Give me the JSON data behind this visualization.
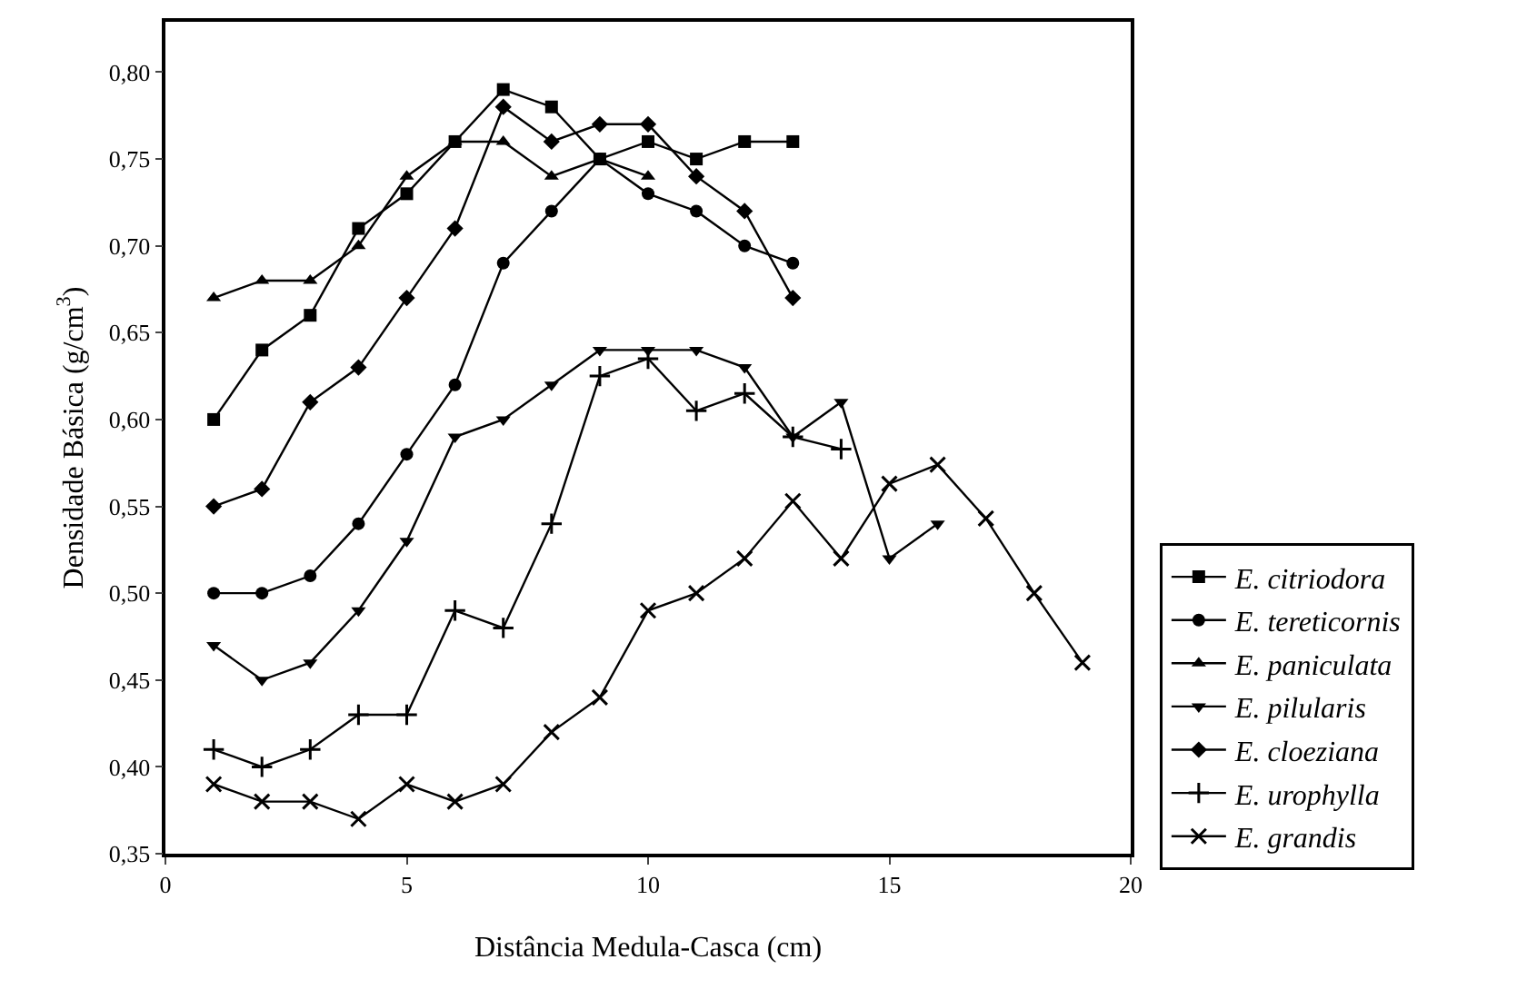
{
  "chart_data": {
    "type": "line",
    "xlabel": "Distância Medula-Casca (cm)",
    "ylabel": "Densidade Básica (g/cm$^{3}$)",
    "xlim": [
      0,
      20
    ],
    "xticks": [
      0,
      5,
      10,
      15,
      20
    ],
    "ylim": [
      0.35,
      0.829
    ],
    "yticks": [
      {
        "value": 0.35,
        "label": "0,35"
      },
      {
        "value": 0.4,
        "label": "0,40"
      },
      {
        "value": 0.45,
        "label": "0,45"
      },
      {
        "value": 0.5,
        "label": "0,50"
      },
      {
        "value": 0.55,
        "label": "0,55"
      },
      {
        "value": 0.6,
        "label": "0,60"
      },
      {
        "value": 0.65,
        "label": "0,65"
      },
      {
        "value": 0.7,
        "label": "0,70"
      },
      {
        "value": 0.75,
        "label": "0,75"
      },
      {
        "value": 0.8,
        "label": "0,80"
      }
    ],
    "grid": false,
    "legend": "right",
    "line_style": "solid",
    "series": [
      {
        "name": "E. citriodora",
        "color": "#000000",
        "marker": "square",
        "x": [
          1,
          2,
          3,
          4,
          5,
          6,
          7,
          8,
          9,
          10,
          11,
          12,
          13
        ],
        "values": [
          0.6,
          0.64,
          0.66,
          0.71,
          0.73,
          0.76,
          0.79,
          0.78,
          0.75,
          0.76,
          0.75,
          0.76,
          0.76
        ]
      },
      {
        "name": "E. tereticornis",
        "color": "#000000",
        "marker": "circle",
        "x": [
          1,
          2,
          3,
          4,
          5,
          6,
          7,
          8,
          9,
          10,
          11,
          12,
          13
        ],
        "values": [
          0.5,
          0.5,
          0.51,
          0.54,
          0.58,
          0.62,
          0.69,
          0.72,
          0.75,
          0.73,
          0.72,
          0.7,
          0.69
        ]
      },
      {
        "name": "E. paniculata",
        "color": "#000000",
        "marker": "triangle",
        "x": [
          1,
          2,
          3,
          4,
          5,
          6,
          7,
          8,
          9,
          10
        ],
        "values": [
          0.67,
          0.68,
          0.68,
          0.7,
          0.74,
          0.76,
          0.76,
          0.74,
          0.75,
          0.74
        ]
      },
      {
        "name": "E. pilularis",
        "color": "#000000",
        "marker": "triangle-down",
        "x": [
          1,
          2,
          3,
          4,
          5,
          6,
          7,
          8,
          9,
          10,
          11,
          12,
          13,
          14,
          15,
          16
        ],
        "values": [
          0.47,
          0.45,
          0.46,
          0.49,
          0.53,
          0.59,
          0.6,
          0.62,
          0.64,
          0.64,
          0.64,
          0.63,
          0.59,
          0.61,
          0.52,
          0.54
        ]
      },
      {
        "name": "E. cloeziana",
        "color": "#000000",
        "marker": "diamond",
        "x": [
          1,
          2,
          3,
          4,
          5,
          6,
          7,
          8,
          9,
          10,
          11,
          12,
          13
        ],
        "values": [
          0.55,
          0.56,
          0.61,
          0.63,
          0.67,
          0.71,
          0.78,
          0.76,
          0.77,
          0.77,
          0.74,
          0.72,
          0.67
        ]
      },
      {
        "name": "E. urophylla",
        "color": "#000000",
        "marker": "cross",
        "x": [
          1,
          2,
          3,
          4,
          5,
          6,
          7,
          8,
          9,
          10,
          11,
          12,
          13,
          14
        ],
        "values": [
          0.41,
          0.4,
          0.41,
          0.43,
          0.43,
          0.49,
          0.48,
          0.54,
          0.625,
          0.635,
          0.605,
          0.615,
          0.59,
          0.583
        ]
      },
      {
        "name": "E. grandis",
        "color": "#000000",
        "marker": "x",
        "x": [
          1,
          2,
          3,
          4,
          5,
          6,
          7,
          8,
          9,
          10,
          11,
          12,
          13,
          14,
          15,
          16,
          17,
          18,
          19
        ],
        "values": [
          0.39,
          0.38,
          0.38,
          0.37,
          0.39,
          0.38,
          0.39,
          0.42,
          0.44,
          0.49,
          0.5,
          0.52,
          0.553,
          0.52,
          0.563,
          0.574,
          0.543,
          0.5,
          0.46
        ]
      }
    ]
  }
}
